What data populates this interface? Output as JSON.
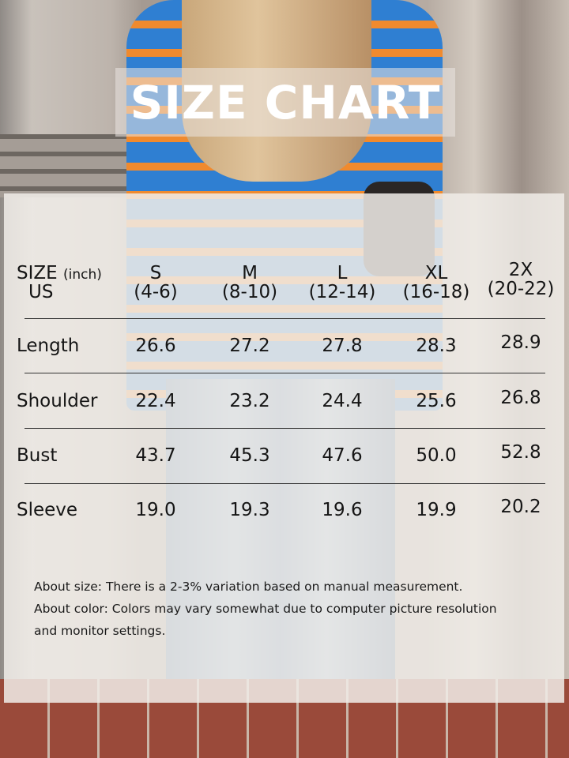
{
  "title": "SIZE CHART",
  "table": {
    "header_label_line1": "SIZE",
    "header_unit": "(inch)",
    "header_label_line2": "US",
    "columns": [
      {
        "size": "S",
        "us": "(4-6)"
      },
      {
        "size": "M",
        "us": "(8-10)"
      },
      {
        "size": "L",
        "us": "(12-14)"
      },
      {
        "size": "XL",
        "us": "(16-18)"
      },
      {
        "size": "2X",
        "us": "(20-22)"
      }
    ],
    "rows": [
      {
        "label": "Length",
        "values": [
          "26.6",
          "27.2",
          "27.8",
          "28.3",
          "28.9"
        ]
      },
      {
        "label": "Shoulder",
        "values": [
          "22.4",
          "23.2",
          "24.4",
          "25.6",
          "26.8"
        ]
      },
      {
        "label": "Bust",
        "values": [
          "43.7",
          "45.3",
          "47.6",
          "50.0",
          "52.8"
        ]
      },
      {
        "label": "Sleeve",
        "values": [
          "19.0",
          "19.3",
          "19.6",
          "19.9",
          "20.2"
        ]
      }
    ]
  },
  "notes": [
    "About size: There is a 2-3% variation based on manual measurement.",
    "About color: Colors may vary somewhat due to computer picture resolution",
    "and monitor settings."
  ]
}
